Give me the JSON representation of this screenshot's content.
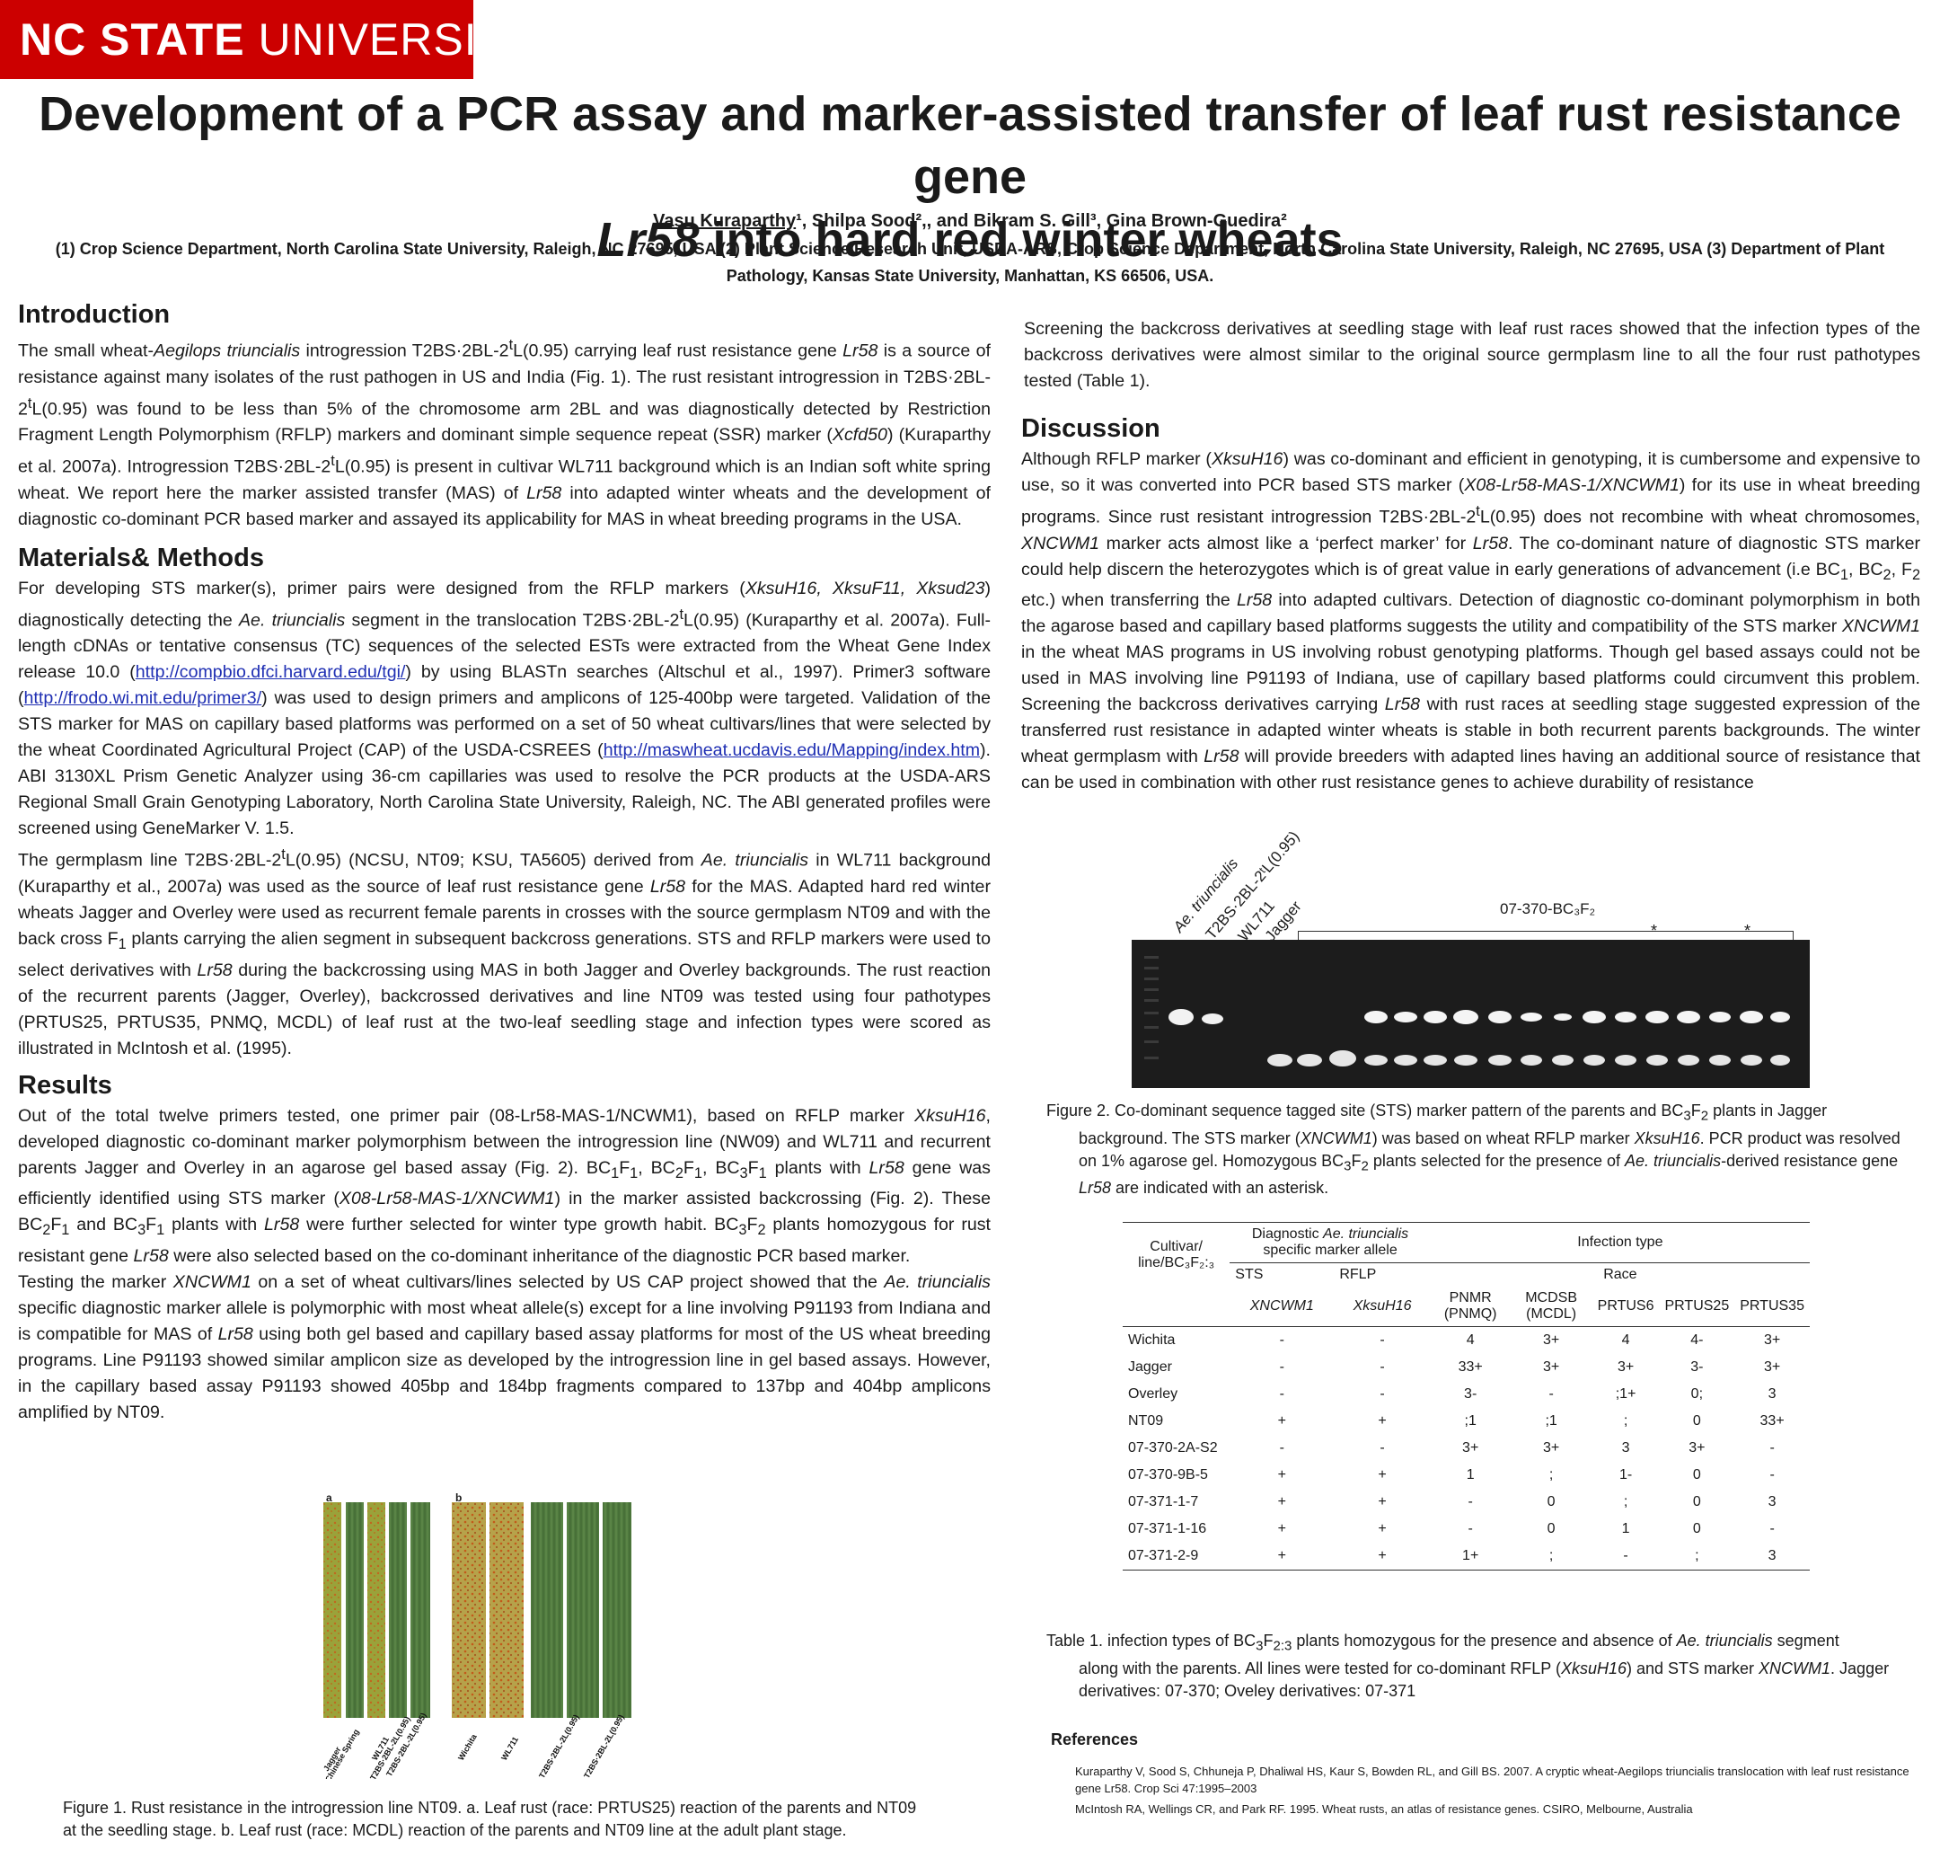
{
  "logo": {
    "bold": "NC STATE",
    "light": " UNIVERSITY"
  },
  "title": {
    "line1": "Development of a PCR assay and marker-assisted transfer of leaf rust resistance gene",
    "line2_italic": "Lr58",
    "line2_rest": " into hard red winter wheats"
  },
  "authors": {
    "a1": "Vasu Kuraparthy",
    "rest": "¹, Shilpa Sood²,, and Bikram S. Gill³, Gina Brown-Guedira²"
  },
  "affiliations": "(1) Crop Science Department, North Carolina State University, Raleigh, NC 27695, USA (2) Plant Science Research Unit, USDA-ARS, Crop Science Department, North Carolina State University, Raleigh, NC 27695, USA (3) Department of Plant Pathology, Kansas State University, Manhattan, KS 66506, USA.",
  "sections": {
    "intro_heading": "Introduction",
    "methods_heading": "Materials& Methods",
    "results_heading": "Results",
    "discussion_heading": "Discussion",
    "references_heading": "References"
  },
  "links": {
    "tgi": "http://compbio.dfci.harvard.edu/tgi/",
    "primer3": "http://frodo.wi.mit.edu/primer3/",
    "maswheat": "http://maswheat.ucdavis.edu/Mapping/index.htm"
  },
  "figure1": {
    "panel_a": "a",
    "panel_b": "b",
    "labels_a": [
      "Jagger",
      "Chinese Spring",
      "WL711",
      "T2BS·2BL-2L(0.95)",
      "T2BS·2BL-2L(0.95)"
    ],
    "labels_b": [
      "Wichita",
      "WL711",
      "T2BS·2BL-2L(0.95)",
      "T2BS·2BL-2L(0.95)"
    ],
    "caption": "Figure 1. Rust resistance in the introgression line NT09. a. Leaf rust (race: PRTUS25) reaction of the parents and NT09 at the seedling stage. b. Leaf rust (race: MCDL) reaction of the parents and NT09 line at the adult plant stage."
  },
  "figure2": {
    "lane_labels": [
      "Ae. triuncialis",
      "T2BS·2BL-2ᵗL(0.95)",
      "WL711",
      "Jagger"
    ],
    "group_label": "07-370-BC₃F₂",
    "star": "*"
  },
  "table1": {
    "head_cultivar": "Cultivar/ line/BC₃F₂:₃",
    "head_diag_1": "Diagnostic ",
    "head_diag_2": "Ae. triuncialis",
    "head_diag_3": " specific marker allele",
    "head_infection": "Infection type",
    "head_sts": "STS",
    "head_rflp": "RFLP",
    "head_race": "Race",
    "cols": [
      "XNCWM1",
      "XksuH16",
      "PNMR (PNMQ)",
      "MCDSB (MCDL)",
      "PRTUS6",
      "PRTUS25",
      "PRTUS35"
    ],
    "rows": [
      [
        "Wichita",
        "-",
        "-",
        "4",
        "3+",
        "4",
        "4-",
        "3+"
      ],
      [
        "Jagger",
        "-",
        "-",
        "33+",
        "3+",
        "3+",
        "3-",
        "3+"
      ],
      [
        "Overley",
        "-",
        "-",
        "3-",
        "-",
        ";1+",
        "0;",
        "3"
      ],
      [
        "NT09",
        "+",
        "+",
        ";1",
        ";1",
        ";",
        "0",
        "33+"
      ],
      [
        "07-370-2A-S2",
        "-",
        "-",
        "3+",
        "3+",
        "3",
        "3+",
        "-"
      ],
      [
        "07-370-9B-5",
        "+",
        "+",
        "1",
        ";",
        "1-",
        "0",
        "-"
      ],
      [
        "07-371-1-7",
        "+",
        "+",
        "-",
        "0",
        ";",
        "0",
        "3"
      ],
      [
        "07-371-1-16",
        "+",
        "+",
        "-",
        "0",
        "1",
        "0",
        "-"
      ],
      [
        "07-371-2-9",
        "+",
        "+",
        "1+",
        ";",
        "-",
        ";",
        "3"
      ]
    ]
  },
  "references": {
    "r1": "Kuraparthy V, Sood S, Chhuneja P, Dhaliwal HS, Kaur S, Bowden RL, and Gill BS. 2007. A cryptic wheat-Aegilops triuncialis translocation with leaf rust resistance gene Lr58. Crop Sci 47:1995–2003",
    "r2": "McIntosh RA, Wellings CR, and Park RF. 1995. Wheat rusts, an atlas of resistance genes. CSIRO, Melbourne, Australia"
  },
  "colors": {
    "brand_red": "#cc0000",
    "link_blue": "#1f2fb3",
    "gel_bg": "#1a1a1a"
  }
}
